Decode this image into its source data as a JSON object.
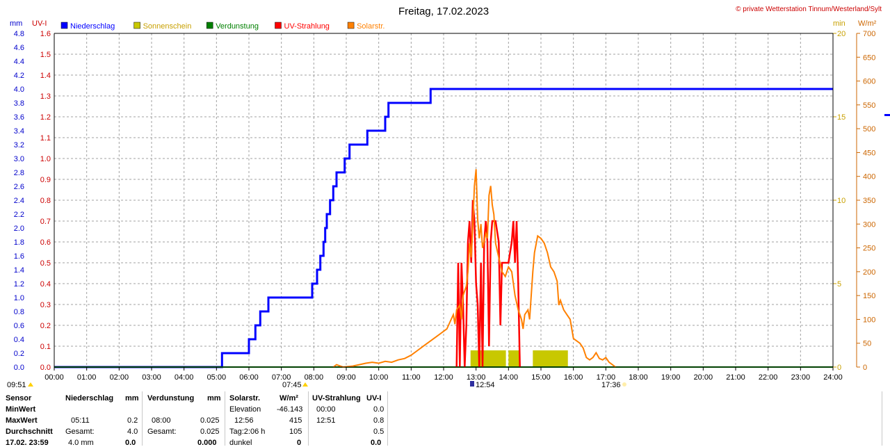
{
  "page": {
    "title": "Freitag, 17.02.2023",
    "copyright": "© private Wetterstation Tinnum/Westerland/Sylt"
  },
  "axes": {
    "left1_unit": "mm",
    "left2_unit": "UV-I",
    "right1_unit": "min",
    "right2_unit": "W/m²",
    "mm_ticks": [
      "4.8",
      "4.6",
      "4.4",
      "4.2",
      "4.0",
      "3.8",
      "3.6",
      "3.4",
      "3.2",
      "3.0",
      "2.8",
      "2.6",
      "2.4",
      "2.2",
      "2.0",
      "1.8",
      "1.6",
      "1.4",
      "1.2",
      "1.0",
      "0.8",
      "0.6",
      "0.4",
      "0.2",
      "0.0"
    ],
    "uv_ticks": [
      "1.6",
      "1.5",
      "1.4",
      "1.3",
      "1.2",
      "1.1",
      "1.0",
      "0.9",
      "0.8",
      "0.7",
      "0.6",
      "0.5",
      "0.4",
      "0.3",
      "0.2",
      "0.1",
      "0.0"
    ],
    "min_ticks": [
      "20",
      "15",
      "10",
      "5",
      "0"
    ],
    "wm2_ticks": [
      "700",
      "650",
      "600",
      "550",
      "500",
      "450",
      "400",
      "350",
      "300",
      "250",
      "200",
      "150",
      "100",
      "50",
      "0"
    ],
    "time_ticks": [
      "00:00",
      "01:00",
      "02:00",
      "03:00",
      "04:00",
      "05:00",
      "06:00",
      "07:00",
      "08:00",
      "09:00",
      "10:00",
      "11:00",
      "12:00",
      "13:00",
      "14:00",
      "15:00",
      "16:00",
      "17:00",
      "18:00",
      "19:00",
      "20:00",
      "21:00",
      "22:00",
      "23:00",
      "24:00"
    ]
  },
  "legend": [
    {
      "label": "Niederschlag",
      "color": "#0000ff"
    },
    {
      "label": "Sonnenschein",
      "color": "#c8c800"
    },
    {
      "label": "Verdunstung",
      "color": "#008000"
    },
    {
      "label": "UV-Strahlung",
      "color": "#ff0000"
    },
    {
      "label": "Solarstr.",
      "color": "#ff8000"
    }
  ],
  "markers": {
    "left_time": "09:51",
    "sunrise": "07:45",
    "solar_noon": "12:54",
    "sunset": "17:36"
  },
  "chart_data": {
    "type": "line",
    "title": "Freitag, 17.02.2023",
    "x_unit": "hour of day",
    "xlim": [
      0,
      24
    ],
    "series": [
      {
        "name": "Niederschlag",
        "unit": "mm",
        "color": "#0000ff",
        "ylim": [
          0,
          4.8
        ],
        "step": true,
        "points": [
          [
            0,
            0
          ],
          [
            5.17,
            0
          ],
          [
            5.17,
            0.2
          ],
          [
            6.0,
            0.2
          ],
          [
            6.0,
            0.4
          ],
          [
            6.2,
            0.4
          ],
          [
            6.2,
            0.6
          ],
          [
            6.35,
            0.6
          ],
          [
            6.35,
            0.8
          ],
          [
            6.6,
            0.8
          ],
          [
            6.6,
            1.0
          ],
          [
            7.95,
            1.0
          ],
          [
            7.95,
            1.2
          ],
          [
            8.1,
            1.2
          ],
          [
            8.1,
            1.4
          ],
          [
            8.2,
            1.4
          ],
          [
            8.2,
            1.6
          ],
          [
            8.3,
            1.6
          ],
          [
            8.3,
            1.8
          ],
          [
            8.35,
            1.8
          ],
          [
            8.35,
            2.0
          ],
          [
            8.4,
            2.0
          ],
          [
            8.4,
            2.2
          ],
          [
            8.5,
            2.2
          ],
          [
            8.5,
            2.4
          ],
          [
            8.6,
            2.4
          ],
          [
            8.6,
            2.6
          ],
          [
            8.7,
            2.6
          ],
          [
            8.7,
            2.8
          ],
          [
            8.95,
            2.8
          ],
          [
            8.95,
            3.0
          ],
          [
            9.1,
            3.0
          ],
          [
            9.1,
            3.2
          ],
          [
            9.65,
            3.2
          ],
          [
            9.65,
            3.4
          ],
          [
            10.2,
            3.4
          ],
          [
            10.2,
            3.6
          ],
          [
            10.3,
            3.6
          ],
          [
            10.3,
            3.8
          ],
          [
            11.6,
            3.8
          ],
          [
            11.6,
            4.0
          ],
          [
            24,
            4.0
          ]
        ]
      },
      {
        "name": "Sonnenschein",
        "unit": "min",
        "color": "#c8c800",
        "ylim": [
          0,
          20
        ],
        "bars": [
          [
            12.83,
            13.92,
            1.0
          ],
          [
            14.0,
            14.33,
            1.0
          ],
          [
            14.75,
            15.83,
            1.0
          ]
        ]
      },
      {
        "name": "Verdunstung",
        "unit": "mm",
        "color": "#008000",
        "ylim": [
          0,
          4.8
        ],
        "points": [
          [
            0,
            0
          ],
          [
            24,
            0
          ]
        ],
        "total": "0.025"
      },
      {
        "name": "UV-Strahlung",
        "unit": "UV-I",
        "color": "#ff0000",
        "ylim": [
          0,
          1.6
        ],
        "points": [
          [
            12.4,
            0
          ],
          [
            12.45,
            0.5
          ],
          [
            12.5,
            0
          ],
          [
            12.55,
            0.5
          ],
          [
            12.6,
            0.3
          ],
          [
            12.65,
            0
          ],
          [
            12.7,
            0.2
          ],
          [
            12.75,
            0.6
          ],
          [
            12.8,
            0.7
          ],
          [
            12.85,
            0.5
          ],
          [
            12.9,
            0.8
          ],
          [
            12.95,
            0.7
          ],
          [
            13.0,
            0.4
          ],
          [
            13.05,
            0.3
          ],
          [
            13.1,
            0
          ],
          [
            13.15,
            0.5
          ],
          [
            13.2,
            0
          ],
          [
            13.25,
            0.6
          ],
          [
            13.3,
            0.7
          ],
          [
            13.35,
            0.6
          ],
          [
            13.4,
            0.1
          ],
          [
            13.45,
            0.6
          ],
          [
            13.5,
            0.7
          ],
          [
            13.6,
            0.7
          ],
          [
            13.7,
            0.6
          ],
          [
            13.75,
            0.2
          ],
          [
            13.8,
            0.5
          ],
          [
            13.9,
            0.5
          ],
          [
            14.0,
            0.5
          ],
          [
            14.1,
            0.6
          ],
          [
            14.15,
            0.7
          ],
          [
            14.2,
            0.5
          ],
          [
            14.25,
            0.7
          ],
          [
            14.3,
            0.4
          ],
          [
            14.35,
            0
          ]
        ]
      },
      {
        "name": "Solarstr.",
        "unit": "W/m²",
        "color": "#ff8000",
        "ylim": [
          0,
          700
        ],
        "points": [
          [
            8.6,
            0
          ],
          [
            8.7,
            5
          ],
          [
            8.9,
            0
          ],
          [
            9.2,
            2
          ],
          [
            9.4,
            5
          ],
          [
            9.6,
            8
          ],
          [
            9.8,
            10
          ],
          [
            10.0,
            8
          ],
          [
            10.2,
            12
          ],
          [
            10.4,
            10
          ],
          [
            10.6,
            15
          ],
          [
            10.8,
            18
          ],
          [
            11.0,
            25
          ],
          [
            11.2,
            35
          ],
          [
            11.4,
            45
          ],
          [
            11.6,
            55
          ],
          [
            11.8,
            65
          ],
          [
            12.0,
            75
          ],
          [
            12.1,
            80
          ],
          [
            12.2,
            95
          ],
          [
            12.3,
            110
          ],
          [
            12.35,
            90
          ],
          [
            12.4,
            120
          ],
          [
            12.5,
            130
          ],
          [
            12.55,
            100
          ],
          [
            12.6,
            150
          ],
          [
            12.7,
            170
          ],
          [
            12.75,
            200
          ],
          [
            12.8,
            260
          ],
          [
            12.85,
            230
          ],
          [
            12.9,
            300
          ],
          [
            12.95,
            380
          ],
          [
            13.0,
            415
          ],
          [
            13.05,
            310
          ],
          [
            13.1,
            270
          ],
          [
            13.15,
            300
          ],
          [
            13.2,
            250
          ],
          [
            13.3,
            280
          ],
          [
            13.35,
            270
          ],
          [
            13.4,
            360
          ],
          [
            13.45,
            380
          ],
          [
            13.5,
            340
          ],
          [
            13.55,
            320
          ],
          [
            13.6,
            260
          ],
          [
            13.7,
            230
          ],
          [
            13.8,
            200
          ],
          [
            13.9,
            190
          ],
          [
            14.0,
            210
          ],
          [
            14.1,
            200
          ],
          [
            14.2,
            150
          ],
          [
            14.3,
            120
          ],
          [
            14.4,
            100
          ],
          [
            14.45,
            80
          ],
          [
            14.5,
            110
          ],
          [
            14.6,
            120
          ],
          [
            14.65,
            100
          ],
          [
            14.7,
            150
          ],
          [
            14.75,
            200
          ],
          [
            14.8,
            240
          ],
          [
            14.9,
            275
          ],
          [
            15.0,
            270
          ],
          [
            15.1,
            260
          ],
          [
            15.2,
            240
          ],
          [
            15.3,
            210
          ],
          [
            15.4,
            200
          ],
          [
            15.45,
            190
          ],
          [
            15.5,
            180
          ],
          [
            15.55,
            130
          ],
          [
            15.6,
            140
          ],
          [
            15.7,
            120
          ],
          [
            15.8,
            110
          ],
          [
            15.9,
            100
          ],
          [
            16.0,
            60
          ],
          [
            16.1,
            55
          ],
          [
            16.2,
            50
          ],
          [
            16.3,
            40
          ],
          [
            16.4,
            20
          ],
          [
            16.5,
            15
          ],
          [
            16.6,
            20
          ],
          [
            16.7,
            30
          ],
          [
            16.8,
            18
          ],
          [
            16.9,
            15
          ],
          [
            17.0,
            20
          ],
          [
            17.1,
            10
          ],
          [
            17.2,
            5
          ],
          [
            17.3,
            0
          ]
        ]
      }
    ]
  },
  "stats": {
    "h_sensor": "Sensor",
    "h_niederschlag": "Niederschlag",
    "h_mm1": "mm",
    "h_verdunstung": "Verdunstung",
    "h_mm2": "mm",
    "h_solar": "Solarstr.",
    "h_wm2": "W/m²",
    "h_uv": "UV-Strahlung",
    "h_uvi": "UV-I",
    "r1_label": "MinWert",
    "r1_solar_label": "Elevation",
    "r1_solar_val": "-46.143",
    "r1_uv_time": "00:00",
    "r1_uv_val": "0.0",
    "r2_label": "MaxWert",
    "r2_ns_time": "05:11",
    "r2_ns_val": "0.2",
    "r2_vd_time": "08:00",
    "r2_vd_val": "0.025",
    "r2_solar_time": "12:56",
    "r2_solar_val": "415",
    "r2_uv_time": "12:51",
    "r2_uv_val": "0.8",
    "r3_label": "Durchschnitt",
    "r3_ns_label": "Gesamt:",
    "r3_ns_val": "4.0",
    "r3_vd_label": "Gesamt:",
    "r3_vd_val": "0.025",
    "r3_solar_label": "Tag:2:06 h",
    "r3_solar_val": "105",
    "r3_uv_val": "0.5",
    "r4_label": "17.02. 23:59",
    "r4_ns_val1": "4.0 mm",
    "r4_ns_val2": "0.0",
    "r4_vd_val": "0.000",
    "r4_solar_label": "dunkel",
    "r4_solar_val": "0",
    "r4_uv_val": "0.0"
  }
}
